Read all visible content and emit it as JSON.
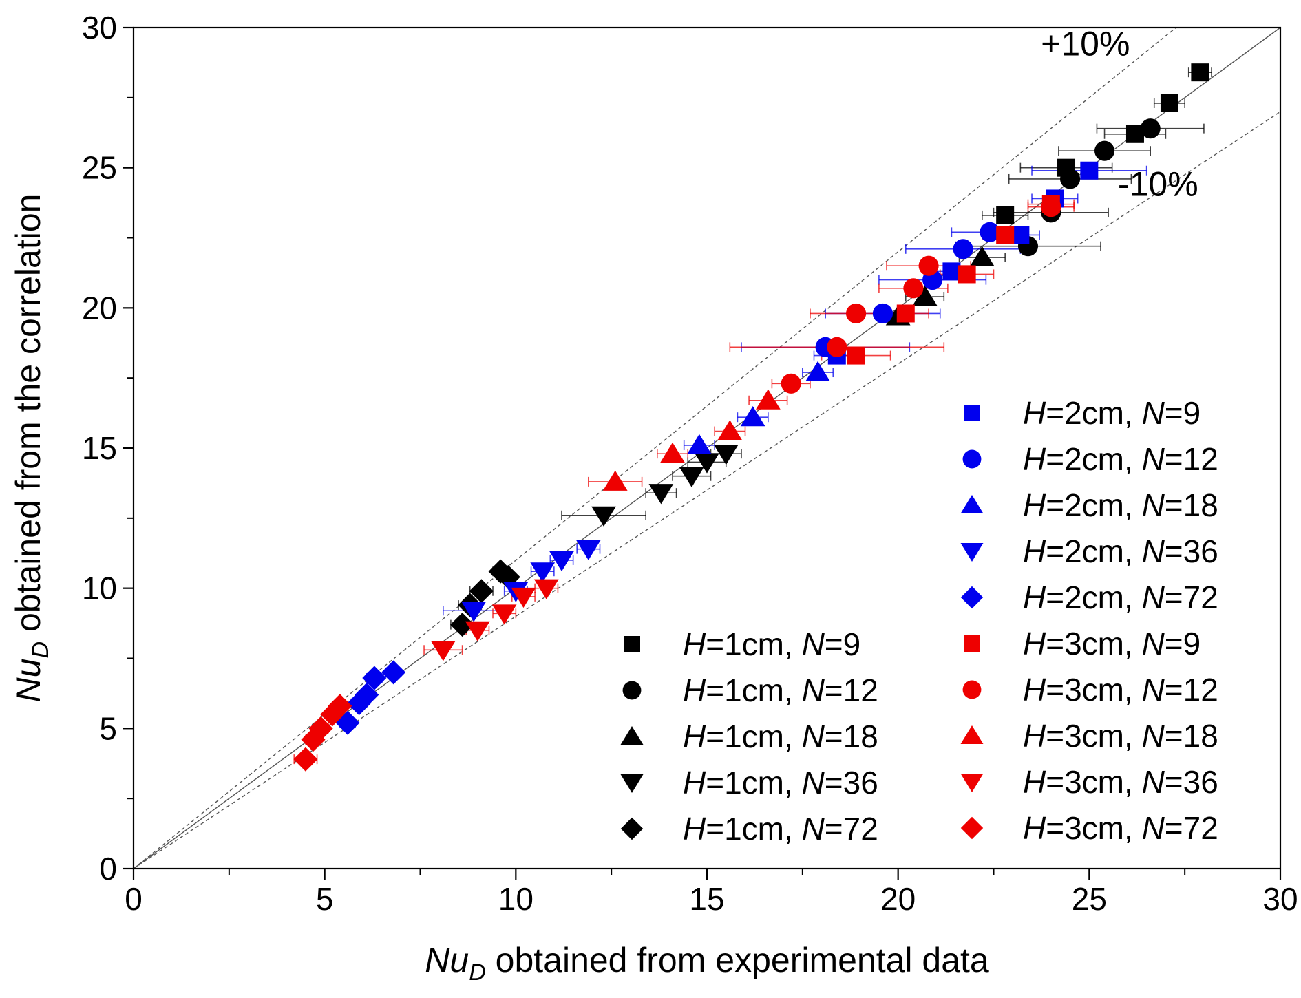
{
  "chart_data": {
    "type": "scatter",
    "title": "",
    "xlabel": {
      "var": "Nu",
      "sub": "D",
      "text": " obtained from experimental data"
    },
    "ylabel": {
      "var": "Nu",
      "sub": "D",
      "text": " obtained from the correlation"
    },
    "xlim": [
      0,
      30
    ],
    "ylim": [
      0,
      30
    ],
    "xticks": [
      0,
      5,
      10,
      15,
      20,
      25,
      30
    ],
    "yticks": [
      0,
      5,
      10,
      15,
      20,
      25,
      30
    ],
    "minor_step": 2.5,
    "grid": false,
    "annotations": [
      {
        "text": "+10%",
        "x": 24.9,
        "y": 29.0
      },
      {
        "text": "-10%",
        "x": 26.8,
        "y": 24.0
      }
    ],
    "reference_lines": [
      {
        "name": "y = x",
        "slope": 1.0,
        "style": "solid"
      },
      {
        "name": "+10%",
        "slope": 1.1,
        "style": "dashed"
      },
      {
        "name": "-10%",
        "slope": 0.9,
        "style": "dashed"
      }
    ],
    "colors": {
      "H1": "#000000",
      "H2": "#0000ee",
      "H3": "#ee0000",
      "line": "#555555"
    },
    "series": [
      {
        "name": "H=1cm, N=9",
        "H": "1",
        "N": "9",
        "color": "#000000",
        "marker": "square",
        "points": [
          [
            27.9,
            28.4,
            0.3
          ],
          [
            27.1,
            27.3,
            0.4
          ],
          [
            26.2,
            26.2,
            0.8
          ],
          [
            24.4,
            25.0,
            1.2
          ],
          [
            22.8,
            23.3,
            0.6
          ]
        ]
      },
      {
        "name": "H=1cm, N=12",
        "H": "1",
        "N": "12",
        "color": "#000000",
        "marker": "circle",
        "points": [
          [
            26.6,
            26.4,
            1.4
          ],
          [
            25.4,
            25.6,
            1.2
          ],
          [
            24.5,
            24.6,
            1.6
          ],
          [
            24.0,
            23.4,
            1.5
          ],
          [
            23.4,
            22.2,
            1.9
          ]
        ]
      },
      {
        "name": "H=1cm, N=18",
        "H": "1",
        "N": "18",
        "color": "#000000",
        "marker": "triangle-up",
        "points": [
          [
            22.2,
            21.8,
            0.6
          ],
          [
            20.7,
            20.4,
            0.5
          ],
          [
            20.0,
            19.7,
            0.4
          ]
        ]
      },
      {
        "name": "H=1cm, N=36",
        "H": "1",
        "N": "36",
        "color": "#000000",
        "marker": "triangle-down",
        "points": [
          [
            15.5,
            14.8,
            0.4
          ],
          [
            15.0,
            14.5,
            0.5
          ],
          [
            14.6,
            14.0,
            0.5
          ],
          [
            13.8,
            13.4,
            0.4
          ],
          [
            12.3,
            12.6,
            1.1
          ]
        ]
      },
      {
        "name": "H=1cm, N=72",
        "H": "1",
        "N": "72",
        "color": "#000000",
        "marker": "diamond",
        "points": [
          [
            9.8,
            10.4,
            0.2
          ],
          [
            9.6,
            10.6,
            0.2
          ],
          [
            9.1,
            9.9,
            0.3
          ],
          [
            8.8,
            9.4,
            0.3
          ],
          [
            8.6,
            8.7,
            0.3
          ]
        ]
      },
      {
        "name": "H=2cm, N=9",
        "H": "2",
        "N": "9",
        "color": "#0000ee",
        "marker": "square",
        "points": [
          [
            25.0,
            24.9,
            1.5
          ],
          [
            24.1,
            23.9,
            0.6
          ],
          [
            23.2,
            22.6,
            0.5
          ],
          [
            21.4,
            21.3,
            0.5
          ],
          [
            18.4,
            18.3,
            0.6
          ]
        ]
      },
      {
        "name": "H=2cm, N=12",
        "H": "2",
        "N": "12",
        "color": "#0000ee",
        "marker": "circle",
        "points": [
          [
            22.4,
            22.7,
            1.0
          ],
          [
            21.7,
            22.1,
            1.5
          ],
          [
            20.9,
            21.0,
            1.4
          ],
          [
            19.6,
            19.8,
            1.5
          ],
          [
            18.1,
            18.6,
            2.2
          ]
        ]
      },
      {
        "name": "H=2cm, N=18",
        "H": "2",
        "N": "18",
        "color": "#0000ee",
        "marker": "triangle-up",
        "points": [
          [
            17.9,
            17.7,
            0.4
          ],
          [
            16.2,
            16.1,
            0.4
          ],
          [
            14.8,
            15.1,
            0.4
          ]
        ]
      },
      {
        "name": "H=2cm, N=36",
        "H": "2",
        "N": "36",
        "color": "#0000ee",
        "marker": "triangle-down",
        "points": [
          [
            11.9,
            11.4,
            0.3
          ],
          [
            11.2,
            11.0,
            0.3
          ],
          [
            10.7,
            10.6,
            0.3
          ],
          [
            10.0,
            9.9,
            0.3
          ],
          [
            8.9,
            9.2,
            0.8
          ]
        ]
      },
      {
        "name": "H=2cm, N=72",
        "H": "2",
        "N": "72",
        "color": "#0000ee",
        "marker": "diamond",
        "points": [
          [
            6.8,
            7.0,
            0.2
          ],
          [
            6.3,
            6.8,
            0.2
          ],
          [
            6.1,
            6.2,
            0.2
          ],
          [
            5.9,
            5.9,
            0.2
          ],
          [
            5.6,
            5.2,
            0.2
          ]
        ]
      },
      {
        "name": "H=3cm, N=9",
        "H": "3",
        "N": "9",
        "color": "#ee0000",
        "marker": "square",
        "points": [
          [
            24.0,
            23.7,
            0.6
          ],
          [
            22.8,
            22.6,
            0.6
          ],
          [
            21.8,
            21.2,
            0.7
          ],
          [
            20.2,
            19.8,
            0.6
          ],
          [
            18.9,
            18.3,
            0.9
          ]
        ]
      },
      {
        "name": "H=3cm, N=12",
        "H": "3",
        "N": "12",
        "color": "#ee0000",
        "marker": "circle",
        "points": [
          [
            24.0,
            23.6,
            0.6
          ],
          [
            20.8,
            21.5,
            1.1
          ],
          [
            20.4,
            20.7,
            0.9
          ],
          [
            18.9,
            19.8,
            1.2
          ],
          [
            18.4,
            18.6,
            2.8
          ],
          [
            17.2,
            17.3,
            0.5
          ]
        ]
      },
      {
        "name": "H=3cm, N=18",
        "H": "3",
        "N": "18",
        "color": "#ee0000",
        "marker": "triangle-up",
        "points": [
          [
            16.6,
            16.7,
            0.5
          ],
          [
            15.6,
            15.6,
            0.4
          ],
          [
            14.1,
            14.8,
            0.4
          ],
          [
            12.6,
            13.8,
            0.7
          ]
        ]
      },
      {
        "name": "H=3cm, N=36",
        "H": "3",
        "N": "36",
        "color": "#ee0000",
        "marker": "triangle-down",
        "points": [
          [
            10.8,
            10.0,
            0.3
          ],
          [
            10.2,
            9.7,
            0.3
          ],
          [
            9.7,
            9.1,
            0.3
          ],
          [
            9.0,
            8.5,
            0.3
          ],
          [
            8.1,
            7.8,
            0.5
          ]
        ]
      },
      {
        "name": "H=3cm, N=72",
        "H": "3",
        "N": "72",
        "color": "#ee0000",
        "marker": "diamond",
        "points": [
          [
            5.4,
            5.8,
            0.2
          ],
          [
            5.2,
            5.5,
            0.2
          ],
          [
            4.9,
            5.0,
            0.2
          ],
          [
            4.7,
            4.6,
            0.2
          ],
          [
            4.5,
            3.9,
            0.3
          ]
        ]
      }
    ],
    "legend": {
      "left": [
        "H=1cm, N=9",
        "H=1cm, N=12",
        "H=1cm, N=18",
        "H=1cm, N=36",
        "H=1cm, N=72"
      ],
      "right": [
        "H=2cm, N=9",
        "H=2cm, N=12",
        "H=2cm, N=18",
        "H=2cm, N=36",
        "H=2cm, N=72",
        "H=3cm, N=9",
        "H=3cm, N=12",
        "H=3cm, N=18",
        "H=3cm, N=36",
        "H=3cm, N=72"
      ]
    }
  }
}
